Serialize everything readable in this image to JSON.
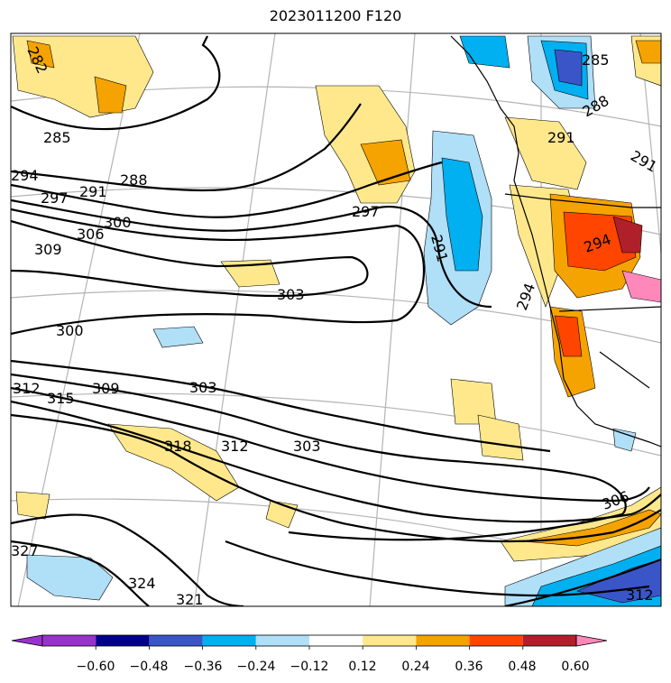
{
  "title": "2023011200 F120",
  "colorbar": {
    "tick_labels": [
      "−0.60",
      "−0.48",
      "−0.36",
      "−0.24",
      "−0.12",
      "0.12",
      "0.24",
      "0.36",
      "0.48",
      "0.60"
    ],
    "colors": [
      "#9932cc",
      "#00008b",
      "#3a55c8",
      "#00b0f0",
      "#b0dff8",
      "#ffffff",
      "#ffe88c",
      "#f5a300",
      "#ff4500",
      "#b0202a",
      "#ff88bb"
    ]
  },
  "contours": {
    "labels": [
      "282",
      "285",
      "285",
      "288",
      "288",
      "291",
      "291",
      "291",
      "291",
      "294",
      "294",
      "294",
      "297",
      "297",
      "300",
      "300",
      "303",
      "303",
      "303",
      "306",
      "306",
      "309",
      "309",
      "312",
      "312",
      "312",
      "315",
      "318",
      "321",
      "324",
      "327"
    ]
  }
}
